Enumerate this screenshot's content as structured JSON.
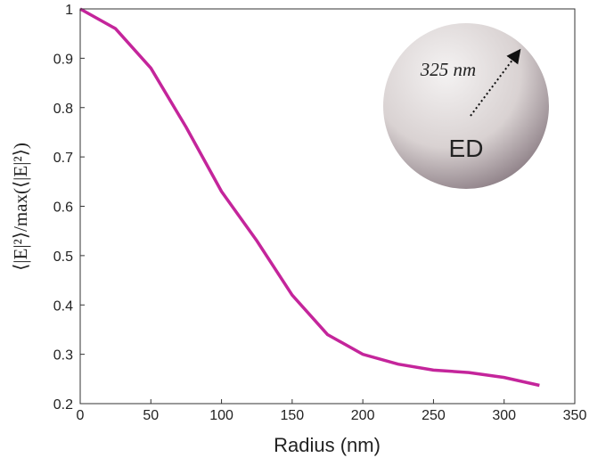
{
  "chart_data": {
    "type": "line",
    "xlabel": "Radius (nm)",
    "ylabel": "⟨|E|²⟩/max(⟨|E|²⟩)",
    "x": [
      0,
      25,
      50,
      75,
      100,
      125,
      150,
      175,
      200,
      225,
      250,
      275,
      300,
      325
    ],
    "series": [
      {
        "color": "#c4259b",
        "values": [
          1.0,
          0.96,
          0.88,
          0.76,
          0.63,
          0.53,
          0.42,
          0.34,
          0.3,
          0.28,
          0.268,
          0.263,
          0.253,
          0.237
        ]
      }
    ],
    "xlim": [
      0,
      350
    ],
    "xticks": [
      0,
      50,
      100,
      150,
      200,
      250,
      300,
      350
    ],
    "ylim": [
      0.2,
      1
    ],
    "yticks": [
      0.2,
      0.3,
      0.4,
      0.5,
      0.6,
      0.7,
      0.8,
      0.9,
      1
    ],
    "annotations": [
      "325 nm",
      "ED"
    ]
  }
}
